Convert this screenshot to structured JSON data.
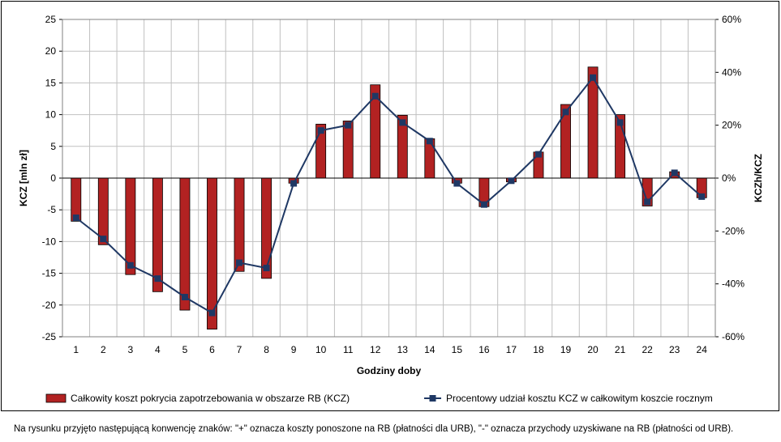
{
  "chart_data": {
    "type": "bar",
    "x_categories": [
      "1",
      "2",
      "3",
      "4",
      "5",
      "6",
      "7",
      "8",
      "9",
      "10",
      "11",
      "12",
      "13",
      "14",
      "15",
      "16",
      "17",
      "18",
      "19",
      "20",
      "21",
      "22",
      "23",
      "24"
    ],
    "series": [
      {
        "name": "Całkowity koszt pokrycia zapotrzebowania w obszarze RB (KCZ)",
        "type": "bar",
        "axis": "left",
        "color": "#b22222",
        "values": [
          -6.8,
          -10.5,
          -15.2,
          -17.9,
          -20.8,
          -23.8,
          -14.7,
          -15.8,
          -0.8,
          8.5,
          9.0,
          14.7,
          9.9,
          6.2,
          -0.8,
          -4.5,
          -0.6,
          4.1,
          11.6,
          17.5,
          10.0,
          -4.4,
          1.0,
          -3.1
        ]
      },
      {
        "name": "Procentowy udział kosztu KCZ w całkowitym koszcie rocznym",
        "type": "line",
        "axis": "right",
        "color": "#1f3864",
        "values": [
          -15,
          -23,
          -33,
          -38,
          -45,
          -51,
          -32,
          -34,
          -2,
          18,
          20,
          31,
          21,
          14,
          -2,
          -10,
          -1,
          9,
          25,
          38,
          21,
          -9,
          2,
          -7
        ]
      }
    ],
    "xlabel": "Godziny doby",
    "ylabel_left": "KCZ [mln zł]",
    "ylabel_right": "KCZh/KCZ",
    "ylim_left": [
      -25,
      25
    ],
    "yticks_left": [
      "25",
      "20",
      "15",
      "10",
      "5",
      "0",
      "-5",
      "-10",
      "-15",
      "-20",
      "-25"
    ],
    "ylim_right": [
      -60,
      60
    ],
    "yticks_right": [
      "60%",
      "40%",
      "20%",
      "0%",
      "-20%",
      "-40%",
      "-60%"
    ],
    "grid": true,
    "legend_position": "bottom"
  },
  "footnote": "Na rysunku przyjęto następującą konwencję znaków: \"+\" oznacza koszty ponoszone na RB (płatności dla URB), \"-\" oznacza przychody uzyskiwane na RB (płatności od URB)."
}
